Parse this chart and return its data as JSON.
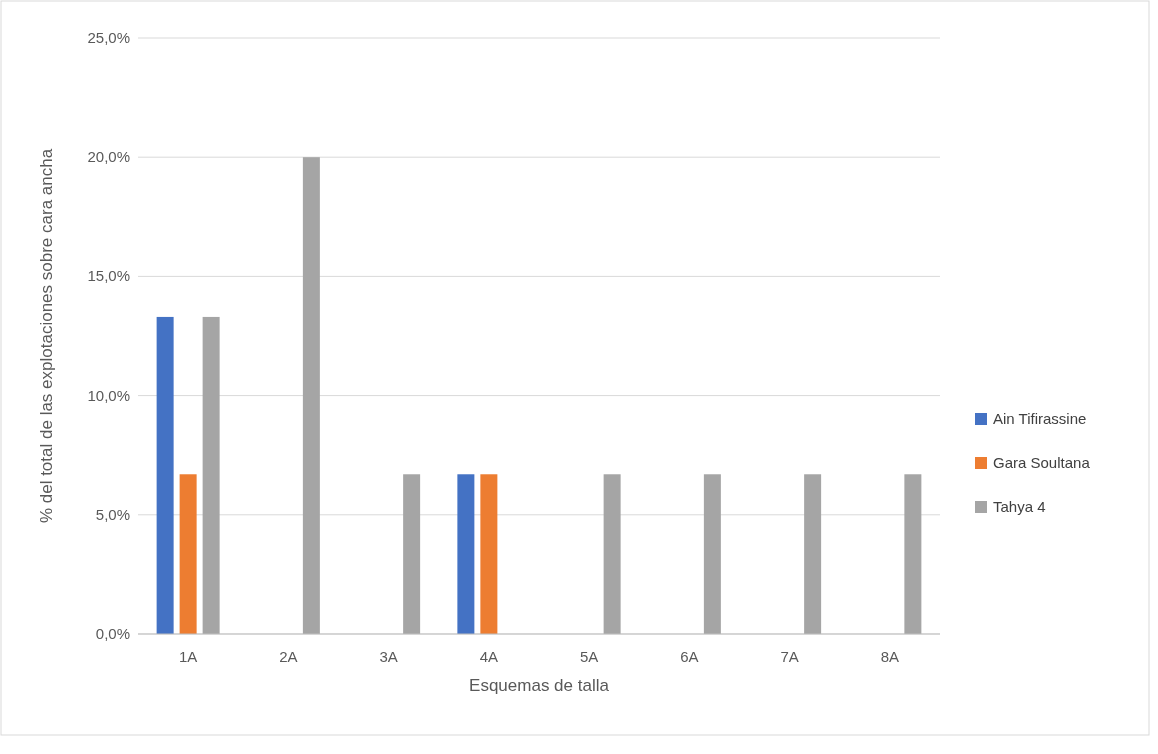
{
  "chart_data": {
    "type": "bar",
    "xlabel": "Esquemas de talla",
    "ylabel": "% del total de las explotaciones sobre cara ancha",
    "categories": [
      "1A",
      "2A",
      "3A",
      "4A",
      "5A",
      "6A",
      "7A",
      "8A"
    ],
    "series": [
      {
        "name": "Ain Tifirassine",
        "color": "#4472c4",
        "values": [
          13.3,
          0,
          0,
          6.7,
          0,
          0,
          0,
          0
        ]
      },
      {
        "name": "Gara Soultana",
        "color": "#ed7d31",
        "values": [
          6.7,
          0,
          0,
          6.7,
          0,
          0,
          0,
          0
        ]
      },
      {
        "name": "Tahya 4",
        "color": "#a5a5a5",
        "values": [
          13.3,
          20,
          6.7,
          0,
          6.7,
          6.7,
          6.7,
          6.7
        ]
      }
    ],
    "ylim": [
      0,
      25
    ],
    "yticks": [
      {
        "value": 0,
        "label": "0,0%"
      },
      {
        "value": 5,
        "label": "5,0%"
      },
      {
        "value": 10,
        "label": "10,0%"
      },
      {
        "value": 15,
        "label": "15,0%"
      },
      {
        "value": 20,
        "label": "20,0%"
      },
      {
        "value": 25,
        "label": "25,0%"
      }
    ],
    "grid": "y",
    "legend": "right"
  }
}
